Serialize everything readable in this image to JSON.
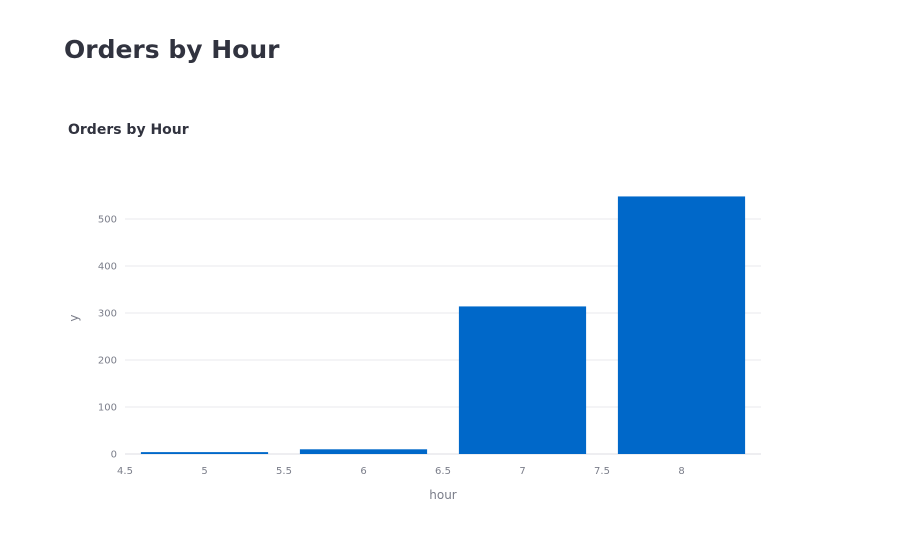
{
  "page": {
    "title": "Orders by Hour"
  },
  "chart_data": {
    "type": "bar",
    "title": "Orders by Hour",
    "xlabel": "hour",
    "ylabel": "y",
    "x": [
      5,
      6,
      7,
      8
    ],
    "values": [
      4,
      10,
      314,
      548
    ],
    "xlim": [
      4.5,
      8.5
    ],
    "ylim": [
      0,
      560
    ],
    "xticks": [
      "4.5",
      "5",
      "5.5",
      "6",
      "6.5",
      "7",
      "7.5",
      "8"
    ],
    "yticks": [
      "0",
      "100",
      "200",
      "300",
      "400",
      "500"
    ],
    "grid": true,
    "color": "#0068c9"
  }
}
